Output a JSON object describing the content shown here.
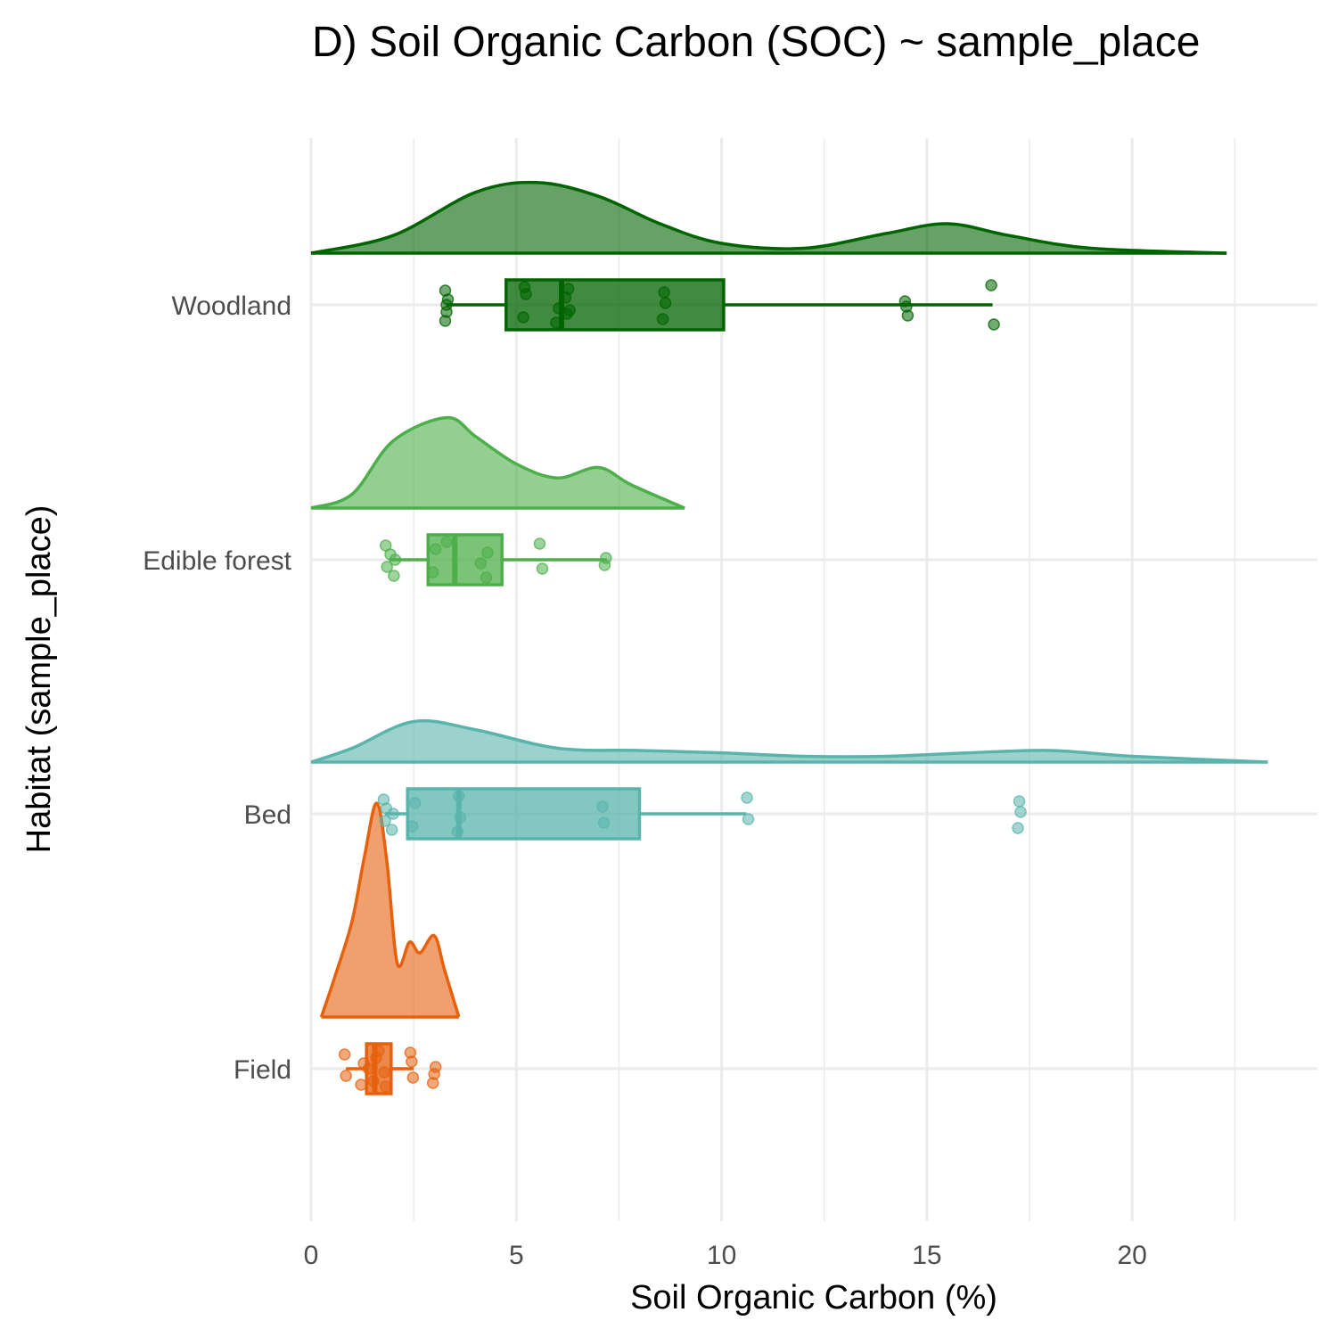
{
  "chart_data": {
    "type": "raincloud",
    "title": "D) Soil Organic Carbon (SOC) ~ sample_place",
    "xlabel": "Soil Organic Carbon (%)",
    "ylabel": "Habitat (sample_place)",
    "xlim": [
      0,
      24.5
    ],
    "xticks": [
      0,
      5,
      10,
      15,
      20
    ],
    "xtick_labels": [
      "0",
      "5",
      "10",
      "15",
      "20"
    ],
    "grid": true,
    "legend": "none",
    "categories": [
      "Woodland",
      "Edible forest",
      "Bed",
      "Field"
    ],
    "series": [
      {
        "category": "Woodland",
        "color": "#006400",
        "box": {
          "whisker_low": 3.3,
          "q1": 4.75,
          "median": 6.1,
          "q3": 10.05,
          "whisker_high": 16.6
        },
        "points": [
          3.3,
          3.3,
          3.3,
          3.3,
          3.3,
          5.2,
          5.2,
          5.2,
          6.0,
          6.0,
          6.2,
          6.2,
          6.3,
          6.3,
          8.6,
          8.6,
          8.6,
          14.5,
          14.5,
          14.5,
          16.6,
          16.6
        ],
        "density": [
          [
            0,
            0.0
          ],
          [
            2,
            0.18
          ],
          [
            4,
            0.62
          ],
          [
            5.5,
            0.72
          ],
          [
            7,
            0.58
          ],
          [
            8.5,
            0.3
          ],
          [
            10,
            0.1
          ],
          [
            12,
            0.05
          ],
          [
            14,
            0.2
          ],
          [
            15.5,
            0.3
          ],
          [
            17,
            0.18
          ],
          [
            19,
            0.05
          ],
          [
            22.3,
            0.0
          ]
        ]
      },
      {
        "category": "Edible forest",
        "color": "#4daf4a",
        "box": {
          "whisker_low": 1.9,
          "q1": 2.85,
          "median": 3.5,
          "q3": 4.65,
          "whisker_high": 7.2
        },
        "points": [
          1.85,
          1.85,
          1.9,
          2.05,
          2.05,
          3.0,
          3.0,
          3.3,
          4.1,
          4.3,
          4.3,
          5.6,
          5.6,
          7.15,
          7.15
        ],
        "density": [
          [
            0,
            0.0
          ],
          [
            1,
            0.12
          ],
          [
            2,
            0.58
          ],
          [
            3.3,
            0.78
          ],
          [
            4,
            0.62
          ],
          [
            5,
            0.38
          ],
          [
            6,
            0.26
          ],
          [
            7,
            0.35
          ],
          [
            7.8,
            0.2
          ],
          [
            9.1,
            0.0
          ]
        ]
      },
      {
        "category": "Bed",
        "color": "#5ab4ac",
        "box": {
          "whisker_low": 1.8,
          "q1": 2.35,
          "median": 3.6,
          "q3": 8.0,
          "whisker_high": 10.6
        },
        "points": [
          1.8,
          1.8,
          1.8,
          2.0,
          2.0,
          2.5,
          2.5,
          3.6,
          3.6,
          3.6,
          7.1,
          7.1,
          10.65,
          10.65,
          17.25,
          17.25,
          17.25
        ],
        "density": [
          [
            0,
            0.0
          ],
          [
            1,
            0.12
          ],
          [
            2.5,
            0.35
          ],
          [
            4,
            0.28
          ],
          [
            6,
            0.12
          ],
          [
            8,
            0.1
          ],
          [
            10,
            0.08
          ],
          [
            12,
            0.05
          ],
          [
            14,
            0.05
          ],
          [
            16,
            0.08
          ],
          [
            18,
            0.1
          ],
          [
            20,
            0.05
          ],
          [
            23.3,
            0.0
          ]
        ]
      },
      {
        "category": "Field",
        "color": "#e6610e",
        "box": {
          "whisker_low": 0.85,
          "q1": 1.35,
          "median": 1.55,
          "q3": 1.95,
          "whisker_high": 2.5
        },
        "points": [
          0.85,
          0.85,
          1.25,
          1.25,
          1.4,
          1.55,
          1.55,
          1.65,
          1.75,
          1.85,
          2.45,
          2.45,
          2.45,
          3.0,
          3.0,
          3.0
        ],
        "density": [
          [
            0.25,
            0.0
          ],
          [
            0.6,
            0.2
          ],
          [
            1.0,
            0.45
          ],
          [
            1.3,
            0.75
          ],
          [
            1.6,
            1.0
          ],
          [
            1.85,
            0.72
          ],
          [
            2.1,
            0.25
          ],
          [
            2.4,
            0.35
          ],
          [
            2.65,
            0.3
          ],
          [
            3.0,
            0.38
          ],
          [
            3.25,
            0.22
          ],
          [
            3.6,
            0.0
          ]
        ]
      }
    ]
  }
}
